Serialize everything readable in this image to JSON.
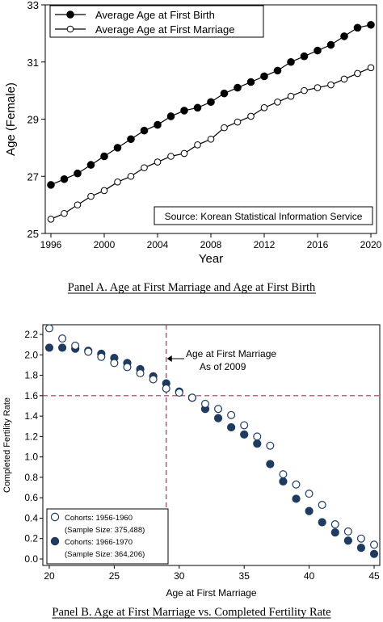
{
  "chart_data": [
    {
      "type": "line",
      "panel_caption": "Panel A. Age at First Marriage and Age at First Birth",
      "xlabel": "Year",
      "ylabel": "Age (Female)",
      "xlim": [
        1996,
        2020
      ],
      "ylim": [
        25,
        33
      ],
      "xticks": [
        "1996",
        "2000",
        "2004",
        "2008",
        "2012",
        "2016",
        "2020"
      ],
      "yticks": [
        "25",
        "27",
        "29",
        "31",
        "33"
      ],
      "legend_position": "top-left",
      "source_note": "Source: Korean Statistical Information Service",
      "grid": false,
      "x": [
        1996,
        1997,
        1998,
        1999,
        2000,
        2001,
        2002,
        2003,
        2004,
        2005,
        2006,
        2007,
        2008,
        2009,
        2010,
        2011,
        2012,
        2013,
        2014,
        2015,
        2016,
        2017,
        2018,
        2019,
        2020
      ],
      "series": [
        {
          "name": "Average Age at First Birth",
          "marker": "filled",
          "values": [
            26.7,
            26.9,
            27.1,
            27.4,
            27.7,
            28.0,
            28.3,
            28.6,
            28.8,
            29.1,
            29.3,
            29.4,
            29.6,
            29.9,
            30.1,
            30.3,
            30.5,
            30.7,
            31.0,
            31.2,
            31.4,
            31.6,
            31.9,
            32.2,
            32.3
          ]
        },
        {
          "name": "Average Age at First Marriage",
          "marker": "hollow",
          "values": [
            25.5,
            25.7,
            26.0,
            26.3,
            26.5,
            26.8,
            27.0,
            27.3,
            27.5,
            27.7,
            27.8,
            28.1,
            28.3,
            28.7,
            28.9,
            29.1,
            29.4,
            29.6,
            29.8,
            30.0,
            30.1,
            30.2,
            30.4,
            30.6,
            30.8
          ]
        }
      ]
    },
    {
      "type": "scatter",
      "panel_caption": "Panel B. Age at First Marriage vs. Completed Fertility Rate",
      "xlabel": "Age at First Marriage",
      "ylabel": "Completed Fertility Rate",
      "xlim": [
        20,
        45
      ],
      "ylim": [
        0,
        2.2
      ],
      "xticks": [
        "20",
        "25",
        "30",
        "35",
        "40",
        "45"
      ],
      "yticks": [
        "0.0",
        "0.2",
        "0.4",
        "0.6",
        "0.8",
        "1.0",
        "1.2",
        "1.4",
        "1.6",
        "1.8",
        "2.0",
        "2.2"
      ],
      "legend_position": "bottom-left",
      "reference_lines": {
        "x": 29,
        "y": 1.6
      },
      "annotation": {
        "line1": "Age at First Marriage",
        "line2": "As of 2009"
      },
      "x": [
        20,
        21,
        22,
        23,
        24,
        25,
        26,
        27,
        28,
        29,
        30,
        31,
        32,
        33,
        34,
        35,
        36,
        37,
        38,
        39,
        40,
        41,
        42,
        43,
        44,
        45
      ],
      "series": [
        {
          "name": "Cohorts: 1956-1960",
          "sample": "(Sample Size: 375,488)",
          "marker": "hollow",
          "values": [
            2.26,
            2.16,
            2.09,
            2.03,
            1.98,
            1.92,
            1.88,
            1.82,
            1.76,
            1.67,
            1.63,
            1.58,
            1.52,
            1.47,
            1.41,
            1.31,
            1.2,
            1.11,
            0.83,
            0.73,
            0.64,
            0.53,
            0.34,
            0.27,
            0.2,
            0.14
          ]
        },
        {
          "name": "Cohorts: 1966-1970",
          "sample": "(Sample Size: 364,206)",
          "marker": "filled",
          "values": [
            2.07,
            2.07,
            2.06,
            2.04,
            2.01,
            1.97,
            1.92,
            1.86,
            1.79,
            1.72,
            1.64,
            1.58,
            1.47,
            1.38,
            1.29,
            1.22,
            1.13,
            0.93,
            0.76,
            0.59,
            0.47,
            0.36,
            0.26,
            0.18,
            0.11,
            0.05
          ]
        }
      ]
    }
  ]
}
